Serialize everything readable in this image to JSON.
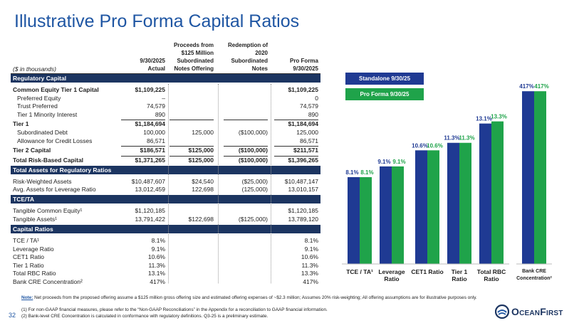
{
  "header": {
    "title": "Illustrative Pro Forma Capital Ratios",
    "page": "32",
    "logo": "OceanFirst"
  },
  "table": {
    "units": "($ in thousands)",
    "columns": [
      [
        "9/30/2025",
        "Actual"
      ],
      [
        "Proceeds from",
        "$125 Million",
        "Subordinated",
        "Notes Offering"
      ],
      [
        "Redemption of",
        "2020",
        "Subordinated",
        "Notes"
      ],
      [
        "Pro Forma",
        "9/30/2025"
      ]
    ],
    "sections": [
      {
        "title": "Regulatory Capital",
        "rows": [
          {
            "label": "Common Equity Tier 1 Capital",
            "bold": true,
            "cells": [
              "$1,109,225",
              null,
              null,
              "$1,109,225"
            ]
          },
          {
            "label": "Preferred Equity",
            "indent": true,
            "cells": [
              "–",
              null,
              null,
              "0"
            ]
          },
          {
            "label": "Trust Preferred",
            "indent": true,
            "cells": [
              "74,579",
              null,
              null,
              "74,579"
            ]
          },
          {
            "label": "Tier 1 Minority Interest",
            "indent": true,
            "cells": [
              "890",
              null,
              null,
              "890"
            ]
          },
          {
            "label": "Tier 1",
            "bold": true,
            "cells": [
              "$1,184,694",
              null,
              null,
              "$1,184,694"
            ]
          },
          {
            "label": "Subordinated Debt",
            "indent": true,
            "cells": [
              "100,000",
              "125,000",
              "($100,000)",
              "125,000"
            ]
          },
          {
            "label": "Allowance for Credit Losses",
            "indent": true,
            "cells": [
              "86,571",
              null,
              null,
              "86,571"
            ]
          },
          {
            "label": "Tier 2 Capital",
            "bold": true,
            "cells": [
              "$186,571",
              "$125,000",
              "($100,000)",
              "$211,571"
            ]
          },
          {
            "label": "Total Risk-Based Capital",
            "bold": true,
            "cells": [
              "$1,371,265",
              "$125,000",
              "($100,000)",
              "$1,396,265"
            ]
          }
        ]
      },
      {
        "title": "Total Assets for Regulatory Ratios",
        "rows": [
          {
            "label": "Risk-Weighted Assets",
            "cells": [
              "$10,487,607",
              "$24,540",
              "($25,000)",
              "$10,487,147"
            ]
          },
          {
            "label": "Avg. Assets for Leverage Ratio",
            "cells": [
              "13,012,459",
              "122,698",
              "(125,000)",
              "13,010,157"
            ]
          }
        ]
      },
      {
        "title": "TCE/TA",
        "rows": [
          {
            "label": "Tangible Common Equity¹",
            "cells": [
              "$1,120,185",
              null,
              null,
              "$1,120,185"
            ]
          },
          {
            "label": "Tangible Assets¹",
            "cells": [
              "13,791,422",
              "$122,698",
              "($125,000)",
              "13,789,120"
            ]
          }
        ]
      },
      {
        "title": "Capital Ratios",
        "rows": [
          {
            "label": "TCE / TA¹",
            "cells": [
              "8.1%",
              null,
              null,
              "8.1%"
            ]
          },
          {
            "label": "Leverage Ratio",
            "cells": [
              "9.1%",
              null,
              null,
              "9.1%"
            ]
          },
          {
            "label": "CET1 Ratio",
            "cells": [
              "10.6%",
              null,
              null,
              "10.6%"
            ]
          },
          {
            "label": "Tier 1 Ratio",
            "cells": [
              "11.3%",
              null,
              null,
              "11.3%"
            ]
          },
          {
            "label": "Total RBC Ratio",
            "cells": [
              "13.1%",
              null,
              null,
              "13.3%"
            ]
          },
          {
            "label": "Bank CRE Concentration²",
            "cells": [
              "417%",
              null,
              null,
              "417%"
            ]
          }
        ]
      }
    ]
  },
  "chart_data": [
    {
      "type": "bar",
      "categories": [
        "TCE / TA¹",
        "Leverage\nRatio",
        "CET1 Ratio",
        "Tier 1\nRatio",
        "Total RBC\nRatio"
      ],
      "ylim": [
        0,
        15
      ],
      "legend": "top-left",
      "series": [
        {
          "name": "Standalone 9/30/25",
          "color": "#1f3a93",
          "values": [
            8.1,
            9.1,
            10.6,
            11.3,
            13.1
          ],
          "value_labels": [
            "8.1%",
            "9.1%",
            "10.6%",
            "11.3%",
            "13.1%"
          ]
        },
        {
          "name": "Pro Forma 9/30/25",
          "color": "#1fa34a",
          "values": [
            8.1,
            9.1,
            10.6,
            11.3,
            13.3
          ],
          "value_labels": [
            "8.1%",
            "9.1%",
            "10.6%",
            "11.3%",
            "13.3%"
          ]
        }
      ]
    },
    {
      "type": "bar",
      "categories": [
        "Bank CRE\nConcentration²"
      ],
      "ylim": [
        0,
        450
      ],
      "series": [
        {
          "color": "#1f3a93",
          "values": [
            417
          ],
          "value_labels": [
            "417%"
          ]
        },
        {
          "color": "#1fa34a",
          "values": [
            417
          ],
          "value_labels": [
            "417%"
          ]
        }
      ]
    }
  ],
  "footnotes": {
    "note_label": "Note:",
    "note": "Net proceeds from the proposed offering assume a $125 million gross offering size and estimated offering expenses of ~$2.3 million; Assumes 20% risk-weighting; All offering assumptions are for illustrative purposes only.",
    "items": [
      "(1) For non-GAAP financial measures, please refer to the “Non-GAAP Reconciliations” in the Appendix for a reconciliation to GAAP financial information.",
      "(2) Bank-level CRE Concentration is calculated in conformance with regulatory definitions. Q3-25 is a preliminary estimate."
    ]
  }
}
